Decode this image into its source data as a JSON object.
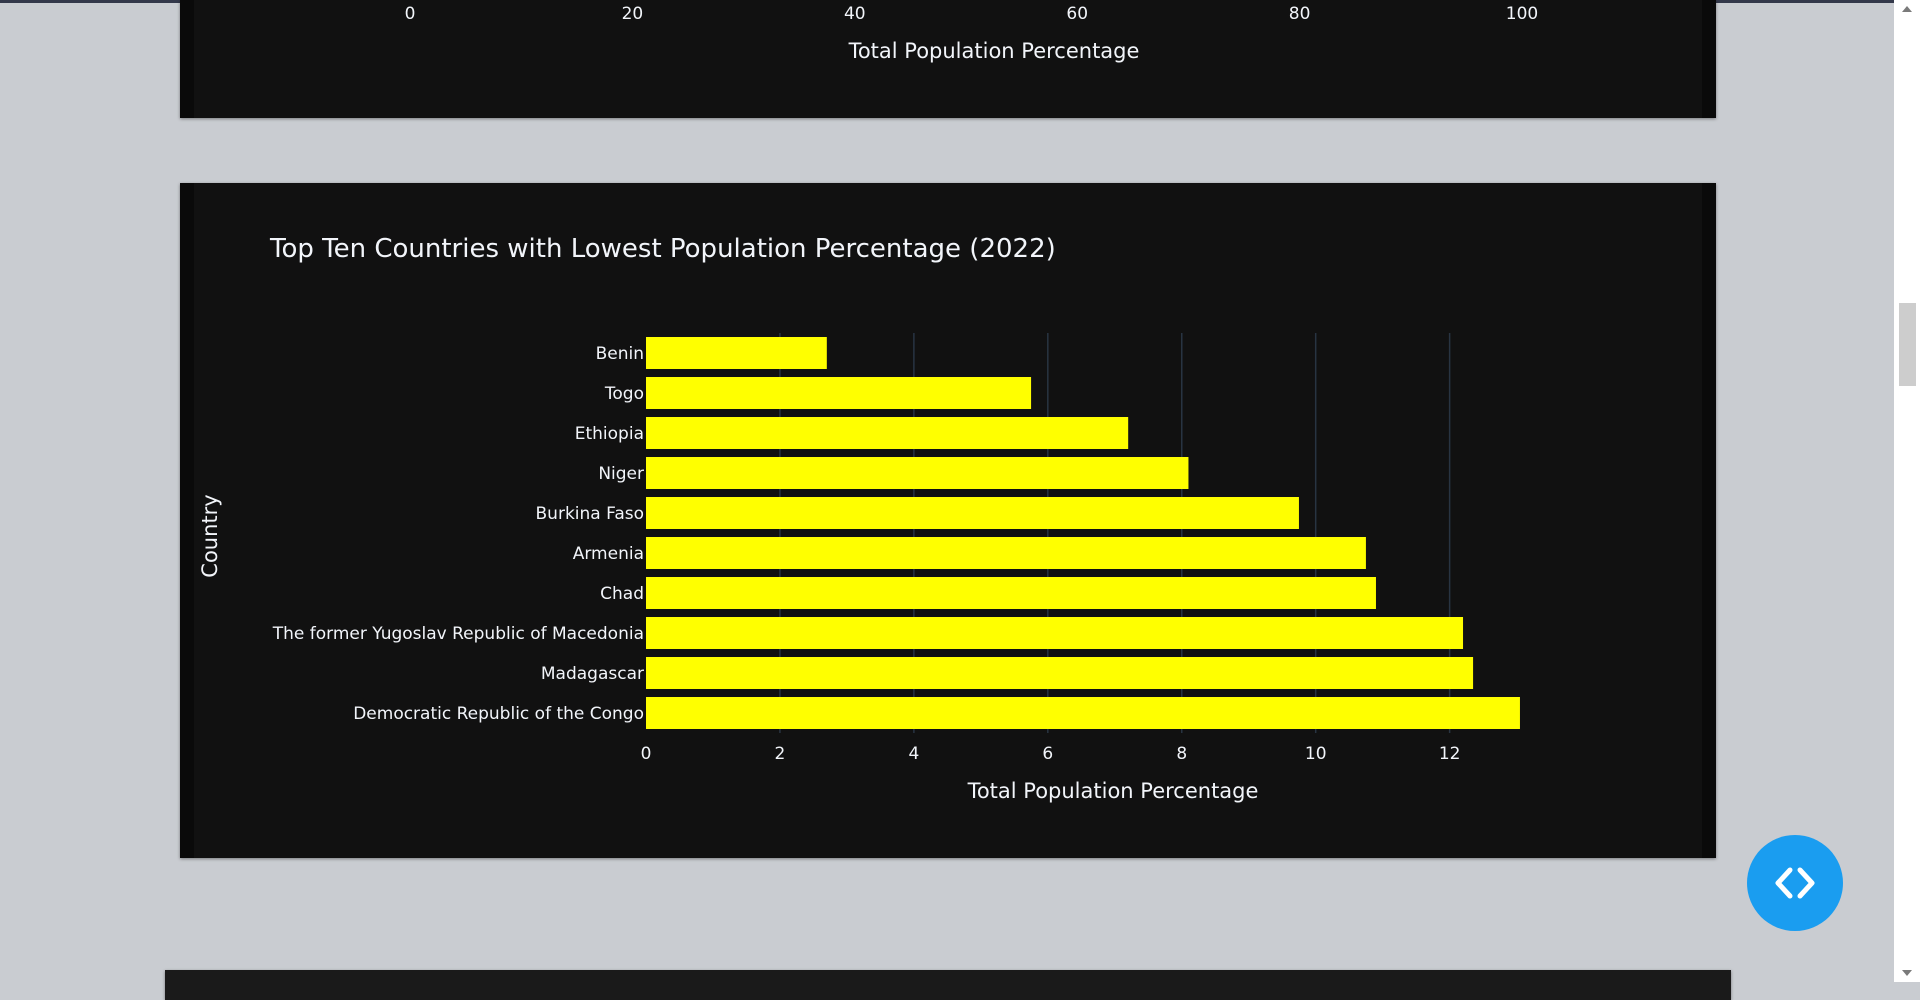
{
  "prev_chart": {
    "xlabel": "Total Population Percentage",
    "ticks": [
      0,
      20,
      40,
      60,
      80,
      100
    ]
  },
  "chart_data": {
    "type": "bar",
    "orientation": "horizontal",
    "title": "Top Ten Countries with Lowest Population Percentage (2022)",
    "xlabel": "Total Population Percentage",
    "ylabel": "Country",
    "categories": [
      "Benin",
      "Togo",
      "Ethiopia",
      "Niger",
      "Burkina Faso",
      "Armenia",
      "Chad",
      "The former Yugoslav Republic of Macedonia",
      "Madagascar",
      "Democratic Republic of the Congo"
    ],
    "values": [
      2.7,
      5.75,
      7.2,
      8.1,
      9.75,
      10.75,
      10.9,
      12.2,
      12.35,
      13.05
    ],
    "xlim": [
      0,
      13.2
    ],
    "xticks": [
      0,
      2,
      4,
      6,
      8,
      10,
      12
    ],
    "grid": true,
    "bar_color": "#ffff00",
    "background_color": "#111111",
    "grid_color": "#283442",
    "text_color": "#f2f5fa"
  },
  "colors": {
    "page_bg": "#c9ccd1",
    "fab": "#1a9df0"
  },
  "fab": {
    "icon": "code-brackets-icon"
  }
}
